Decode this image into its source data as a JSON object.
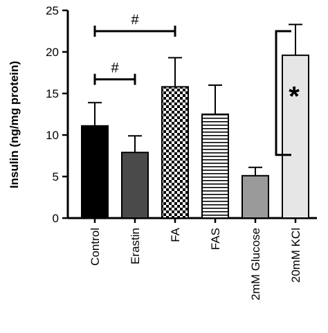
{
  "chart_data": {
    "type": "bar",
    "ylabel": "Insulin (ng/mg protein)",
    "xlabel": "",
    "ylim": [
      0,
      25
    ],
    "yticks": [
      0,
      5,
      10,
      15,
      20,
      25
    ],
    "categories": [
      "Control",
      "Erastin",
      "FA",
      "FAS",
      "2mM Glucose",
      "20mM KCl"
    ],
    "values": [
      11.1,
      7.9,
      15.8,
      12.5,
      5.1,
      19.6
    ],
    "errors": [
      2.8,
      2.0,
      3.5,
      3.5,
      1.0,
      3.7
    ],
    "fills": [
      "solid-black",
      "solid-dark-gray",
      "checkerboard",
      "horizontal-stripes",
      "solid-gray",
      "solid-light-gray"
    ],
    "colors": {
      "solid-black": "#000000",
      "solid-dark-gray": "#4a4a4a",
      "solid-gray": "#9a9a9a",
      "solid-light-gray": "#e6e6e6"
    },
    "annotations": [
      {
        "symbol": "#",
        "from": "Control",
        "to": "FA",
        "style": "bracket"
      },
      {
        "symbol": "#",
        "from": "Control",
        "to": "Erastin",
        "style": "bracket"
      },
      {
        "symbol": "*",
        "from": "2mM Glucose",
        "to": "20mM KCl",
        "style": "vertical-bracket"
      }
    ],
    "grid": false,
    "legend": "none"
  }
}
